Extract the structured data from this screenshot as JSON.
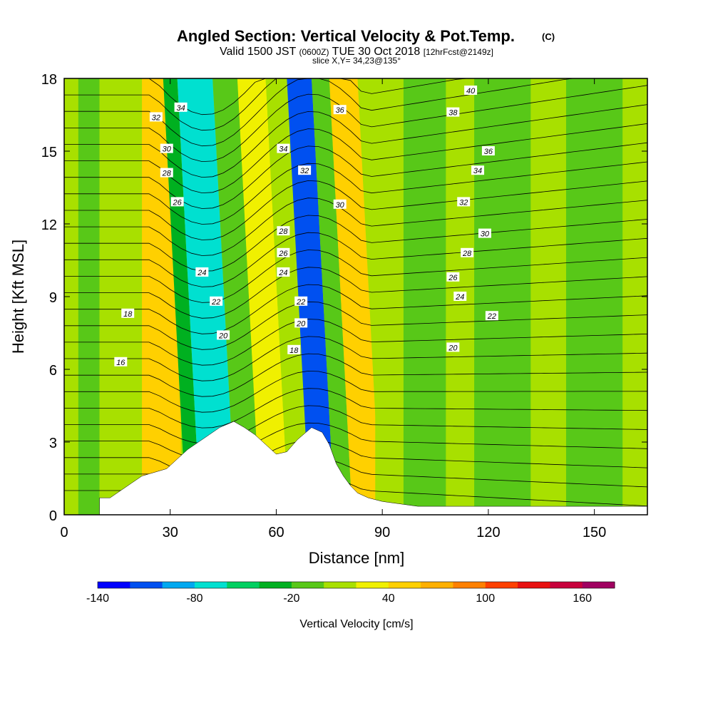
{
  "title": "Angled Section: Vertical Velocity & Pot.Temp.",
  "title_mark": "(C)",
  "valid_prefix": "Valid 1500 JST",
  "valid_utc": "(0600Z)",
  "valid_date": "TUE 30 Oct 2018",
  "valid_fcst": "[12hrFcst@2149z]",
  "slice_info": "slice X,Y= 34,23@135°",
  "chart_data": {
    "type": "heatmap",
    "xlabel": "Distance [nm]",
    "ylabel": "Height [Kft MSL]",
    "xlim": [
      0,
      165
    ],
    "ylim": [
      0,
      18
    ],
    "x_ticks": [
      "0",
      "30",
      "60",
      "90",
      "120",
      "150"
    ],
    "y_ticks": [
      "0",
      "3",
      "6",
      "9",
      "12",
      "15",
      "18"
    ],
    "grid": false,
    "colorbar": {
      "label": "Vertical Velocity [cm/s]",
      "tick_labels": [
        "-140",
        "-80",
        "-20",
        "40",
        "100",
        "160"
      ],
      "tick_values": [
        -140,
        -80,
        -20,
        40,
        100,
        160
      ],
      "range": [
        -140,
        180
      ],
      "step": 20,
      "colors": [
        "#0000ff",
        "#0050f0",
        "#00a8f0",
        "#00e0d0",
        "#00d060",
        "#00b020",
        "#58c818",
        "#a8e000",
        "#f0f000",
        "#ffd000",
        "#ffb000",
        "#ff8000",
        "#ff4000",
        "#e81010",
        "#c8003c",
        "#a00060"
      ]
    },
    "velocity_bands": [
      {
        "x": 4,
        "level": "#58c818"
      },
      {
        "x": 10,
        "level": "#a8e000"
      },
      {
        "x": 22,
        "level": "#ffd000"
      },
      {
        "x": 33,
        "level": "#00b020"
      },
      {
        "x": 37,
        "level": "#00e0d0"
      },
      {
        "x": 47,
        "level": "#58c818"
      },
      {
        "x": 54,
        "level": "#f0f000"
      },
      {
        "x": 62,
        "level": "#a8e000"
      },
      {
        "x": 68,
        "level": "#0050f0"
      },
      {
        "x": 75,
        "level": "#58c818"
      },
      {
        "x": 80,
        "level": "#ffd000"
      },
      {
        "x": 88,
        "level": "#a8e000"
      },
      {
        "x": 96,
        "level": "#58c818"
      },
      {
        "x": 108,
        "level": "#a8e000"
      },
      {
        "x": 116,
        "level": "#58c818"
      },
      {
        "x": 132,
        "level": "#a8e000"
      },
      {
        "x": 142,
        "level": "#58c818"
      },
      {
        "x": 158,
        "level": "#a8e000"
      }
    ],
    "terrain": [
      [
        10,
        0.7
      ],
      [
        13,
        0.7
      ],
      [
        16,
        1.0
      ],
      [
        19,
        1.3
      ],
      [
        22,
        1.6
      ],
      [
        29,
        1.9
      ],
      [
        32,
        2.3
      ],
      [
        35,
        2.7
      ],
      [
        38,
        3.0
      ],
      [
        41,
        3.3
      ],
      [
        44,
        3.6
      ],
      [
        48,
        3.85
      ],
      [
        51,
        3.6
      ],
      [
        54,
        3.3
      ],
      [
        57,
        2.9
      ],
      [
        60,
        2.5
      ],
      [
        63,
        2.6
      ],
      [
        66,
        3.1
      ],
      [
        70,
        3.6
      ],
      [
        73,
        3.4
      ],
      [
        75,
        2.9
      ],
      [
        77,
        2.1
      ],
      [
        79,
        1.6
      ],
      [
        81,
        1.2
      ],
      [
        83,
        0.9
      ],
      [
        86,
        0.7
      ],
      [
        90,
        0.55
      ],
      [
        100,
        0.35
      ],
      [
        165,
        0.35
      ]
    ],
    "theta_contour_labels": [
      {
        "text": "40",
        "x": 115,
        "y": 17.5
      },
      {
        "text": "38",
        "x": 110,
        "y": 16.6
      },
      {
        "text": "36",
        "x": 78,
        "y": 16.7
      },
      {
        "text": "36",
        "x": 120,
        "y": 15.0
      },
      {
        "text": "34",
        "x": 33,
        "y": 16.8
      },
      {
        "text": "34",
        "x": 62,
        "y": 15.1
      },
      {
        "text": "34",
        "x": 117,
        "y": 14.2
      },
      {
        "text": "32",
        "x": 26,
        "y": 16.4
      },
      {
        "text": "32",
        "x": 68,
        "y": 14.2
      },
      {
        "text": "32",
        "x": 113,
        "y": 12.9
      },
      {
        "text": "30",
        "x": 29,
        "y": 15.1
      },
      {
        "text": "30",
        "x": 78,
        "y": 12.8
      },
      {
        "text": "30",
        "x": 119,
        "y": 11.6
      },
      {
        "text": "28",
        "x": 29,
        "y": 14.1
      },
      {
        "text": "28",
        "x": 62,
        "y": 11.7
      },
      {
        "text": "28",
        "x": 114,
        "y": 10.8
      },
      {
        "text": "26",
        "x": 32,
        "y": 12.9
      },
      {
        "text": "26",
        "x": 62,
        "y": 10.8
      },
      {
        "text": "26",
        "x": 110,
        "y": 9.8
      },
      {
        "text": "24",
        "x": 39,
        "y": 10.0
      },
      {
        "text": "24",
        "x": 62,
        "y": 10.0
      },
      {
        "text": "24",
        "x": 112,
        "y": 9.0
      },
      {
        "text": "22",
        "x": 43,
        "y": 8.8
      },
      {
        "text": "22",
        "x": 67,
        "y": 8.8
      },
      {
        "text": "22",
        "x": 121,
        "y": 8.2
      },
      {
        "text": "20",
        "x": 45,
        "y": 7.4
      },
      {
        "text": "20",
        "x": 67,
        "y": 7.9
      },
      {
        "text": "20",
        "x": 110,
        "y": 6.9
      },
      {
        "text": "18",
        "x": 18,
        "y": 8.3
      },
      {
        "text": "18",
        "x": 65,
        "y": 6.8
      },
      {
        "text": "16",
        "x": 16,
        "y": 6.3
      }
    ]
  }
}
